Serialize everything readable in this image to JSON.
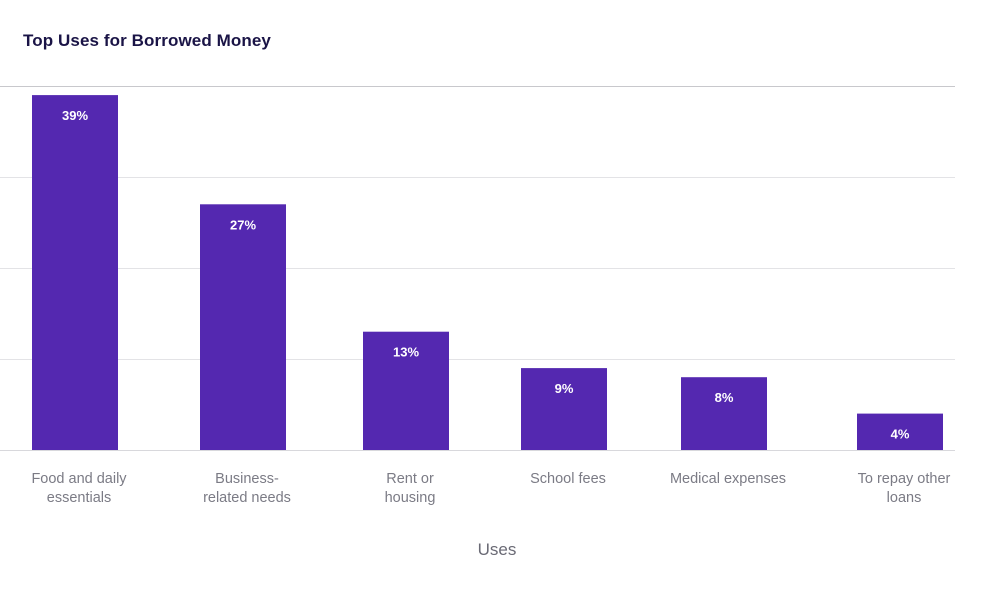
{
  "chart_data": {
    "type": "bar",
    "title": "Top Uses for Borrowed Money",
    "xlabel": "Uses",
    "ylabel": "",
    "categories": [
      [
        "Food and daily",
        "essentials"
      ],
      [
        "Business-",
        "related needs"
      ],
      [
        "Rent or",
        "housing"
      ],
      [
        "School fees"
      ],
      [
        "Medical expenses"
      ],
      [
        "To repay other",
        "loans"
      ]
    ],
    "values": [
      39,
      27,
      13,
      9,
      8,
      4
    ],
    "value_labels": [
      "39%",
      "27%",
      "13%",
      "9%",
      "8%",
      "4%"
    ],
    "ylim": [
      0,
      40
    ],
    "grid": true,
    "bar_color": "#5428b0"
  }
}
